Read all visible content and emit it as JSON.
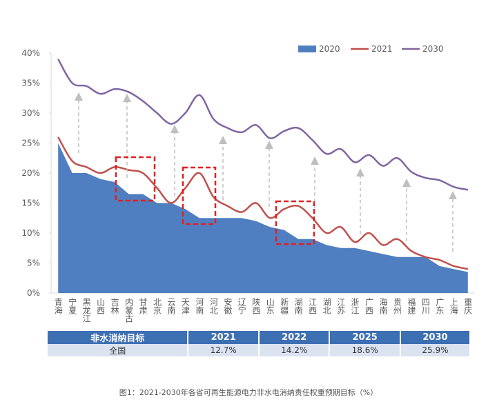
{
  "chart_data": {
    "type": "area-line",
    "categories": [
      "青海",
      "宁夏",
      "黑龙江",
      "山西",
      "吉林",
      "内蒙古",
      "甘肃",
      "北京",
      "云南",
      "天津",
      "河南",
      "河北",
      "安徽",
      "辽宁",
      "陕西",
      "山东",
      "新疆",
      "湖南",
      "江西",
      "湖北",
      "江苏",
      "浙江",
      "广西",
      "海南",
      "贵州",
      "福建",
      "四川",
      "广东",
      "上海",
      "重庆"
    ],
    "series": [
      {
        "name": "2020",
        "color": "#4f7fc0",
        "values": [
          25,
          20,
          20,
          19,
          18.5,
          16.5,
          16.5,
          15,
          15,
          14,
          12.5,
          12.5,
          12.5,
          12.5,
          12,
          11,
          10.5,
          9,
          9,
          8,
          7.5,
          7.5,
          7,
          6.5,
          6,
          6,
          6,
          4.5,
          4,
          3.5
        ]
      },
      {
        "name": "2021",
        "color": "#c0504d",
        "values": [
          26,
          22,
          21,
          20,
          21,
          20.5,
          20,
          17.5,
          15,
          17.5,
          20,
          16,
          14.5,
          13.5,
          15,
          12.5,
          14,
          14.5,
          12.5,
          10,
          11,
          8.5,
          10,
          8,
          9,
          7,
          6,
          5.5,
          4.5,
          4
        ]
      },
      {
        "name": "2030",
        "color": "#8064a2",
        "values": [
          39,
          35,
          34.5,
          33.2,
          34,
          33.5,
          32,
          30,
          28.2,
          30,
          33,
          29,
          27.5,
          26.8,
          28,
          25.8,
          27,
          27.5,
          25.5,
          23.2,
          24,
          21.8,
          23,
          21.2,
          22.5,
          20.2,
          19.2,
          18.8,
          17.7,
          17.2
        ]
      }
    ],
    "ylim": [
      0,
      40
    ],
    "yticks": [
      {
        "value": 0,
        "label": "0%"
      },
      {
        "value": 5,
        "label": "5%"
      },
      {
        "value": 10,
        "label": "10%"
      },
      {
        "value": 15,
        "label": "15%"
      },
      {
        "value": 20,
        "label": "20%"
      },
      {
        "value": 25,
        "label": "25%"
      },
      {
        "value": 30,
        "label": "30%"
      },
      {
        "value": 35,
        "label": "35%"
      },
      {
        "value": 40,
        "label": "40%"
      }
    ],
    "legend": "top-right"
  },
  "table": {
    "header": [
      "非水消纳目标",
      "2021",
      "2022",
      "2025",
      "2030"
    ],
    "rows": [
      [
        "全国",
        "12.7%",
        "14.2%",
        "18.6%",
        "25.9%"
      ]
    ]
  },
  "caption": "图1：2021-2030年各省可再生能源电力非水电消纳责任权重预期目标（%）"
}
